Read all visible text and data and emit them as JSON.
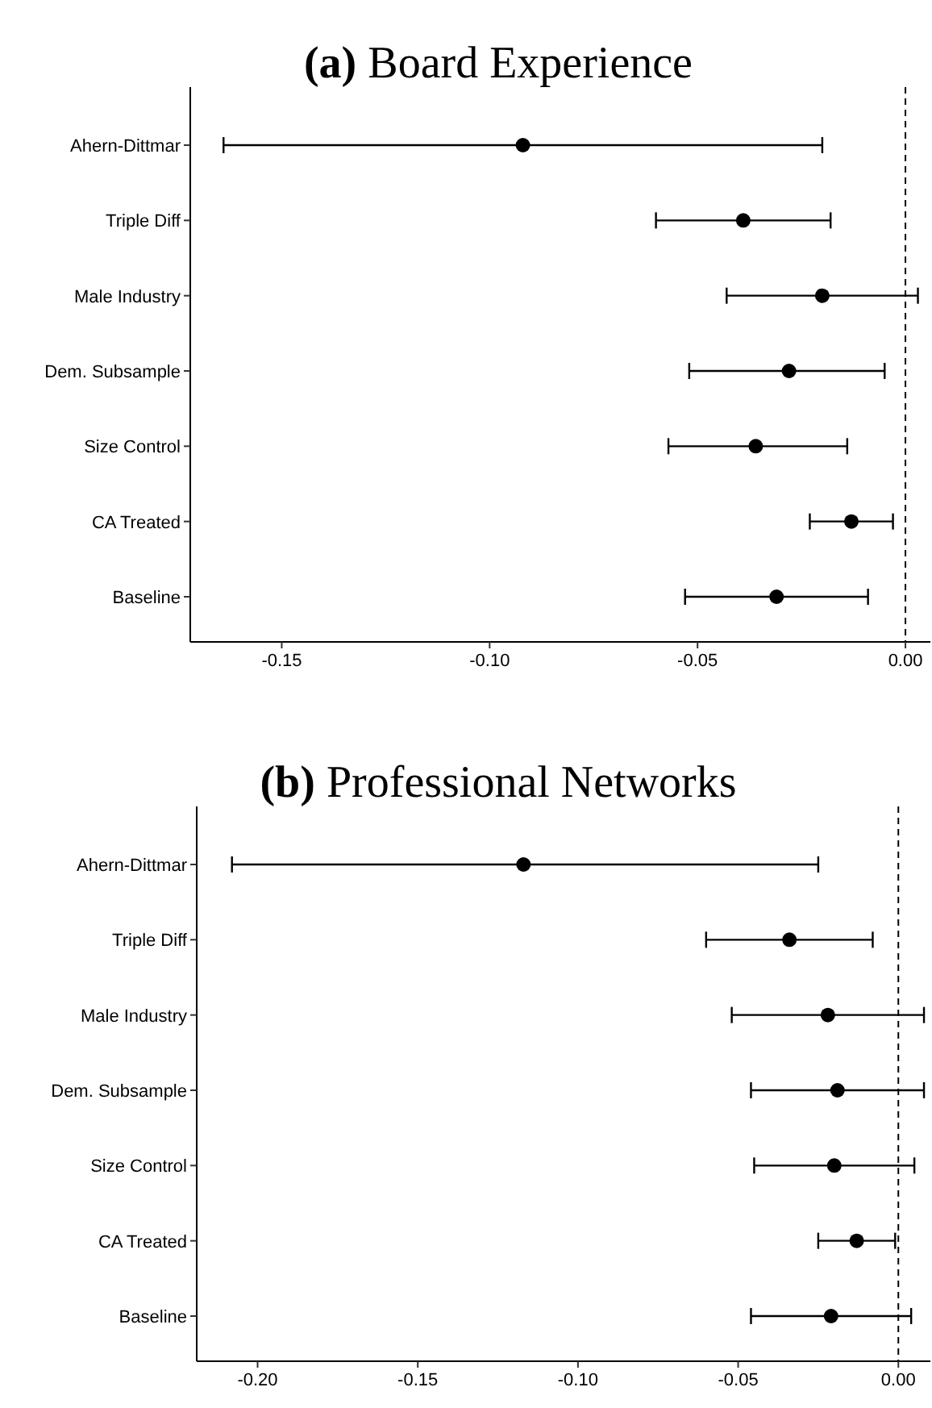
{
  "chart_data": [
    {
      "type": "scatter",
      "orientation": "horizontal",
      "title": "(a) Board Experience",
      "marker": "circle",
      "categories": [
        "Ahern-Dittmar",
        "Triple Diff",
        "Male Industry",
        "Dem. Subsample",
        "Size Control",
        "CA Treated",
        "Baseline"
      ],
      "series": [
        {
          "color": "#000000",
          "values": [
            -0.092,
            -0.039,
            -0.02,
            -0.028,
            -0.036,
            -0.013,
            -0.031
          ],
          "errors": [
            [
              -0.164,
              -0.02
            ],
            [
              -0.06,
              -0.018
            ],
            [
              -0.043,
              0.003
            ],
            [
              -0.052,
              -0.005
            ],
            [
              -0.057,
              -0.014
            ],
            [
              -0.023,
              -0.003
            ],
            [
              -0.053,
              -0.009
            ]
          ]
        }
      ],
      "xlim": [
        -0.172,
        0.006
      ],
      "xticks": [
        {
          "value": -0.15,
          "label": "-0.15"
        },
        {
          "value": -0.1,
          "label": "-0.10"
        },
        {
          "value": -0.05,
          "label": "-0.05"
        },
        {
          "value": 0,
          "label": "0.00"
        }
      ],
      "ref_lines": [
        {
          "axis": "x",
          "value": 0,
          "line_style": "dashed",
          "color": "#000000"
        }
      ]
    },
    {
      "type": "scatter",
      "orientation": "horizontal",
      "title": "(b) Professional Networks",
      "marker": "circle",
      "categories": [
        "Ahern-Dittmar",
        "Triple Diff",
        "Male Industry",
        "Dem. Subsample",
        "Size Control",
        "CA Treated",
        "Baseline"
      ],
      "series": [
        {
          "color": "#000000",
          "values": [
            -0.117,
            -0.034,
            -0.022,
            -0.019,
            -0.02,
            -0.013,
            -0.021
          ],
          "errors": [
            [
              -0.208,
              -0.025
            ],
            [
              -0.06,
              -0.008
            ],
            [
              -0.052,
              0.008
            ],
            [
              -0.046,
              0.008
            ],
            [
              -0.045,
              0.005
            ],
            [
              -0.025,
              -0.001
            ],
            [
              -0.046,
              0.004
            ]
          ]
        }
      ],
      "xlim": [
        -0.219,
        0.01
      ],
      "xticks": [
        {
          "value": -0.2,
          "label": "-0.20"
        },
        {
          "value": -0.15,
          "label": "-0.15"
        },
        {
          "value": -0.1,
          "label": "-0.10"
        },
        {
          "value": -0.05,
          "label": "-0.05"
        },
        {
          "value": 0,
          "label": "0.00"
        }
      ],
      "ref_lines": [
        {
          "axis": "x",
          "value": 0,
          "line_style": "dashed",
          "color": "#000000"
        }
      ]
    }
  ]
}
